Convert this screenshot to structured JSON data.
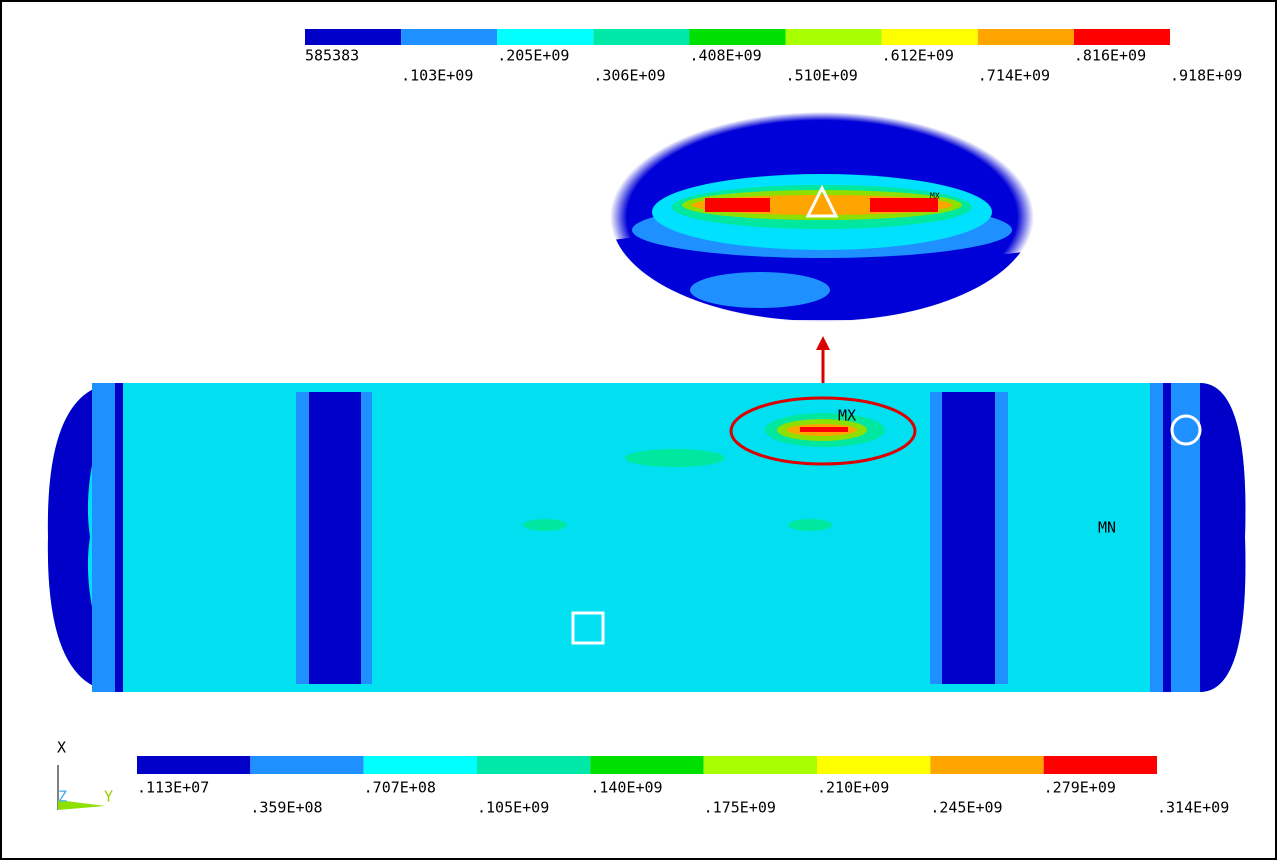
{
  "top_legend": {
    "labels": [
      "585383",
      ".103E+09",
      ".205E+09",
      ".306E+09",
      ".408E+09",
      ".510E+09",
      ".612E+09",
      ".714E+09",
      ".816E+09",
      ".918E+09"
    ]
  },
  "bottom_legend": {
    "labels": [
      ".113E+07",
      ".359E+08",
      ".707E+08",
      ".105E+09",
      ".140E+09",
      ".175E+09",
      ".210E+09",
      ".245E+09",
      ".279E+09",
      ".314E+09"
    ]
  },
  "model": {
    "max_label": "MX",
    "min_label": "MN",
    "zoom_max_label": "MX"
  },
  "triad": {
    "x": "X",
    "y": "Y",
    "z": "Z"
  }
}
